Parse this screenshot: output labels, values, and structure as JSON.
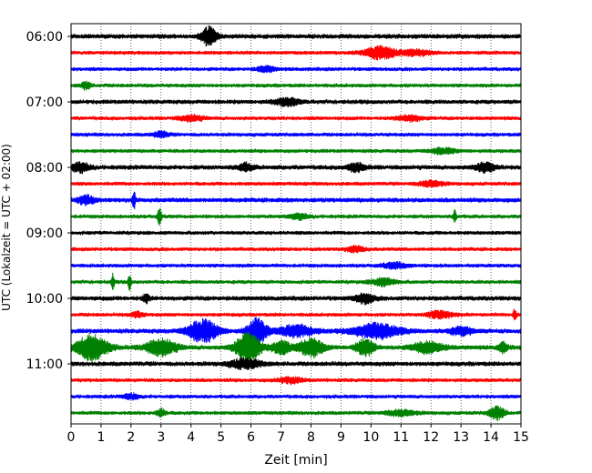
{
  "chart_data": {
    "type": "line",
    "title": "",
    "xlabel": "Zeit  [min]",
    "ylabel": "UTC (Lokalzeit = UTC + 02:00)",
    "xlim": [
      0,
      15
    ],
    "x_ticks": [
      "0",
      "1",
      "2",
      "3",
      "4",
      "5",
      "6",
      "7",
      "8",
      "9",
      "10",
      "11",
      "12",
      "13",
      "14",
      "15"
    ],
    "y_ticks": [
      "06:00",
      "07:00",
      "08:00",
      "09:00",
      "10:00",
      "11:00"
    ],
    "grid": "vertical-dotted",
    "series_colors": [
      "#000000",
      "#ff0000",
      "#0000ff",
      "#008000"
    ],
    "traces": [
      {
        "row": 0,
        "color": "#000000",
        "amplitude": 3,
        "events": [
          {
            "min": 4.6,
            "amp": 10,
            "dur": 0.5
          }
        ]
      },
      {
        "row": 1,
        "color": "#ff0000",
        "amplitude": 2.5,
        "events": [
          {
            "min": 10.3,
            "amp": 7,
            "dur": 1.0
          },
          {
            "min": 11.5,
            "amp": 3,
            "dur": 1.0
          }
        ]
      },
      {
        "row": 2,
        "color": "#0000ff",
        "amplitude": 2.5,
        "events": [
          {
            "min": 6.5,
            "amp": 3,
            "dur": 0.6
          }
        ]
      },
      {
        "row": 3,
        "color": "#008000",
        "amplitude": 2.5,
        "events": [
          {
            "min": 0.5,
            "amp": 4,
            "dur": 0.3
          }
        ]
      },
      {
        "row": 4,
        "color": "#000000",
        "amplitude": 2.8,
        "events": [
          {
            "min": 7.2,
            "amp": 4,
            "dur": 0.8
          }
        ]
      },
      {
        "row": 5,
        "color": "#ff0000",
        "amplitude": 2.5,
        "events": [
          {
            "min": 4.0,
            "amp": 3,
            "dur": 0.8
          },
          {
            "min": 11.3,
            "amp": 3,
            "dur": 0.8
          }
        ]
      },
      {
        "row": 6,
        "color": "#0000ff",
        "amplitude": 2.5,
        "events": [
          {
            "min": 3.0,
            "amp": 3,
            "dur": 0.5
          }
        ]
      },
      {
        "row": 7,
        "color": "#008000",
        "amplitude": 2.5,
        "events": [
          {
            "min": 12.4,
            "amp": 3,
            "dur": 0.8
          }
        ]
      },
      {
        "row": 8,
        "color": "#000000",
        "amplitude": 3,
        "events": [
          {
            "min": 0.3,
            "amp": 5,
            "dur": 0.6
          },
          {
            "min": 5.8,
            "amp": 4,
            "dur": 0.5
          },
          {
            "min": 9.5,
            "amp": 4,
            "dur": 0.6
          },
          {
            "min": 13.8,
            "amp": 5,
            "dur": 0.6
          }
        ]
      },
      {
        "row": 9,
        "color": "#ff0000",
        "amplitude": 2.5,
        "events": [
          {
            "min": 12.0,
            "amp": 3,
            "dur": 0.8
          }
        ]
      },
      {
        "row": 10,
        "color": "#0000ff",
        "amplitude": 3,
        "events": [
          {
            "min": 0.5,
            "amp": 5,
            "dur": 0.5
          },
          {
            "min": 2.1,
            "amp": 9,
            "dur": 0.1
          }
        ]
      },
      {
        "row": 11,
        "color": "#008000",
        "amplitude": 2.5,
        "events": [
          {
            "min": 2.95,
            "amp": 10,
            "dur": 0.12
          },
          {
            "min": 7.6,
            "amp": 3,
            "dur": 0.6
          },
          {
            "min": 12.8,
            "amp": 8,
            "dur": 0.1
          }
        ]
      },
      {
        "row": 12,
        "color": "#000000",
        "amplitude": 2.5,
        "events": []
      },
      {
        "row": 13,
        "color": "#ff0000",
        "amplitude": 2.5,
        "events": [
          {
            "min": 9.5,
            "amp": 3,
            "dur": 0.6
          }
        ]
      },
      {
        "row": 14,
        "color": "#0000ff",
        "amplitude": 2.5,
        "events": [
          {
            "min": 10.8,
            "amp": 3,
            "dur": 0.8
          }
        ]
      },
      {
        "row": 15,
        "color": "#008000",
        "amplitude": 2.5,
        "events": [
          {
            "min": 1.4,
            "amp": 8,
            "dur": 0.1
          },
          {
            "min": 1.95,
            "amp": 8,
            "dur": 0.1
          },
          {
            "min": 10.4,
            "amp": 4,
            "dur": 0.8
          }
        ]
      },
      {
        "row": 16,
        "color": "#000000",
        "amplitude": 3,
        "events": [
          {
            "min": 2.5,
            "amp": 5,
            "dur": 0.2
          },
          {
            "min": 9.8,
            "amp": 5,
            "dur": 0.6
          }
        ]
      },
      {
        "row": 17,
        "color": "#ff0000",
        "amplitude": 2.5,
        "events": [
          {
            "min": 2.2,
            "amp": 3,
            "dur": 0.4
          },
          {
            "min": 12.3,
            "amp": 4,
            "dur": 0.8
          },
          {
            "min": 14.8,
            "amp": 7,
            "dur": 0.1
          }
        ]
      },
      {
        "row": 18,
        "color": "#0000ff",
        "amplitude": 3,
        "events": [
          {
            "min": 4.4,
            "amp": 12,
            "dur": 1.0
          },
          {
            "min": 6.2,
            "amp": 15,
            "dur": 0.6
          },
          {
            "min": 7.5,
            "amp": 6,
            "dur": 1.2
          },
          {
            "min": 10.2,
            "amp": 8,
            "dur": 1.5
          },
          {
            "min": 13.0,
            "amp": 4,
            "dur": 0.8
          }
        ]
      },
      {
        "row": 19,
        "color": "#008000",
        "amplitude": 3,
        "events": [
          {
            "min": 0.7,
            "amp": 14,
            "dur": 1.0
          },
          {
            "min": 3.0,
            "amp": 9,
            "dur": 1.0
          },
          {
            "min": 5.9,
            "amp": 16,
            "dur": 0.8
          },
          {
            "min": 7.0,
            "amp": 7,
            "dur": 0.6
          },
          {
            "min": 8.0,
            "amp": 10,
            "dur": 0.8
          },
          {
            "min": 9.8,
            "amp": 9,
            "dur": 0.6
          },
          {
            "min": 11.9,
            "amp": 6,
            "dur": 1.0
          },
          {
            "min": 14.4,
            "amp": 5,
            "dur": 0.3
          }
        ]
      },
      {
        "row": 20,
        "color": "#000000",
        "amplitude": 3,
        "events": [
          {
            "min": 5.8,
            "amp": 5,
            "dur": 1.0
          }
        ]
      },
      {
        "row": 21,
        "color": "#ff0000",
        "amplitude": 2.5,
        "events": [
          {
            "min": 7.3,
            "amp": 3,
            "dur": 0.8
          }
        ]
      },
      {
        "row": 22,
        "color": "#0000ff",
        "amplitude": 2.5,
        "events": [
          {
            "min": 2.0,
            "amp": 3,
            "dur": 0.5
          }
        ]
      },
      {
        "row": 23,
        "color": "#008000",
        "amplitude": 2.5,
        "events": [
          {
            "min": 3.0,
            "amp": 4,
            "dur": 0.3
          },
          {
            "min": 11.0,
            "amp": 3,
            "dur": 1.0
          },
          {
            "min": 14.2,
            "amp": 7,
            "dur": 0.5
          }
        ]
      }
    ]
  }
}
